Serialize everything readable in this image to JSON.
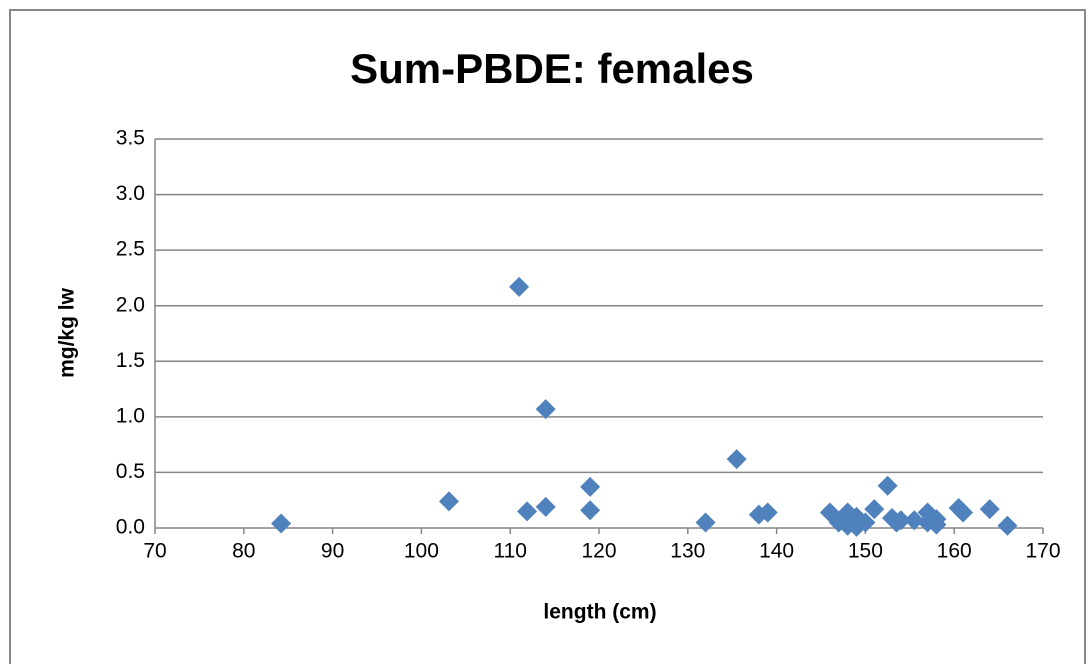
{
  "chart_data": {
    "type": "scatter",
    "title": "Sum-PBDE: females",
    "x_label": "length (cm)",
    "y_label": "mg/kg lw",
    "color": "#4f81bd",
    "grid": true,
    "x": [
      84.2,
      103.1,
      111,
      111.9,
      114,
      114,
      119,
      119,
      132,
      135.5,
      138,
      139,
      146,
      147,
      148,
      148,
      149,
      149,
      150,
      151,
      152.5,
      153,
      153.5,
      154,
      155.5,
      157,
      157,
      158,
      158,
      160.5,
      161,
      164,
      166
    ],
    "values": [
      0.04,
      0.24,
      2.17,
      0.15,
      1.07,
      0.19,
      0.37,
      0.16,
      0.05,
      0.62,
      0.12,
      0.14,
      0.14,
      0.05,
      0.14,
      0.02,
      0.01,
      0.1,
      0.05,
      0.17,
      0.38,
      0.09,
      0.05,
      0.07,
      0.07,
      0.05,
      0.14,
      0.08,
      0.03,
      0.18,
      0.14,
      0.17,
      0.02
    ],
    "xlim": [
      70,
      170
    ],
    "xticks": [
      70,
      80,
      90,
      100,
      110,
      120,
      130,
      140,
      150,
      160,
      170
    ],
    "ylim": [
      0,
      3.5
    ],
    "yticks": [
      {
        "value": 0,
        "label": "0.0"
      },
      0.5,
      {
        "value": 1,
        "label": "1.0"
      },
      1.5,
      {
        "value": 2,
        "label": "2.0"
      },
      2.5,
      {
        "value": 3,
        "label": "3.0"
      },
      3.5
    ]
  }
}
